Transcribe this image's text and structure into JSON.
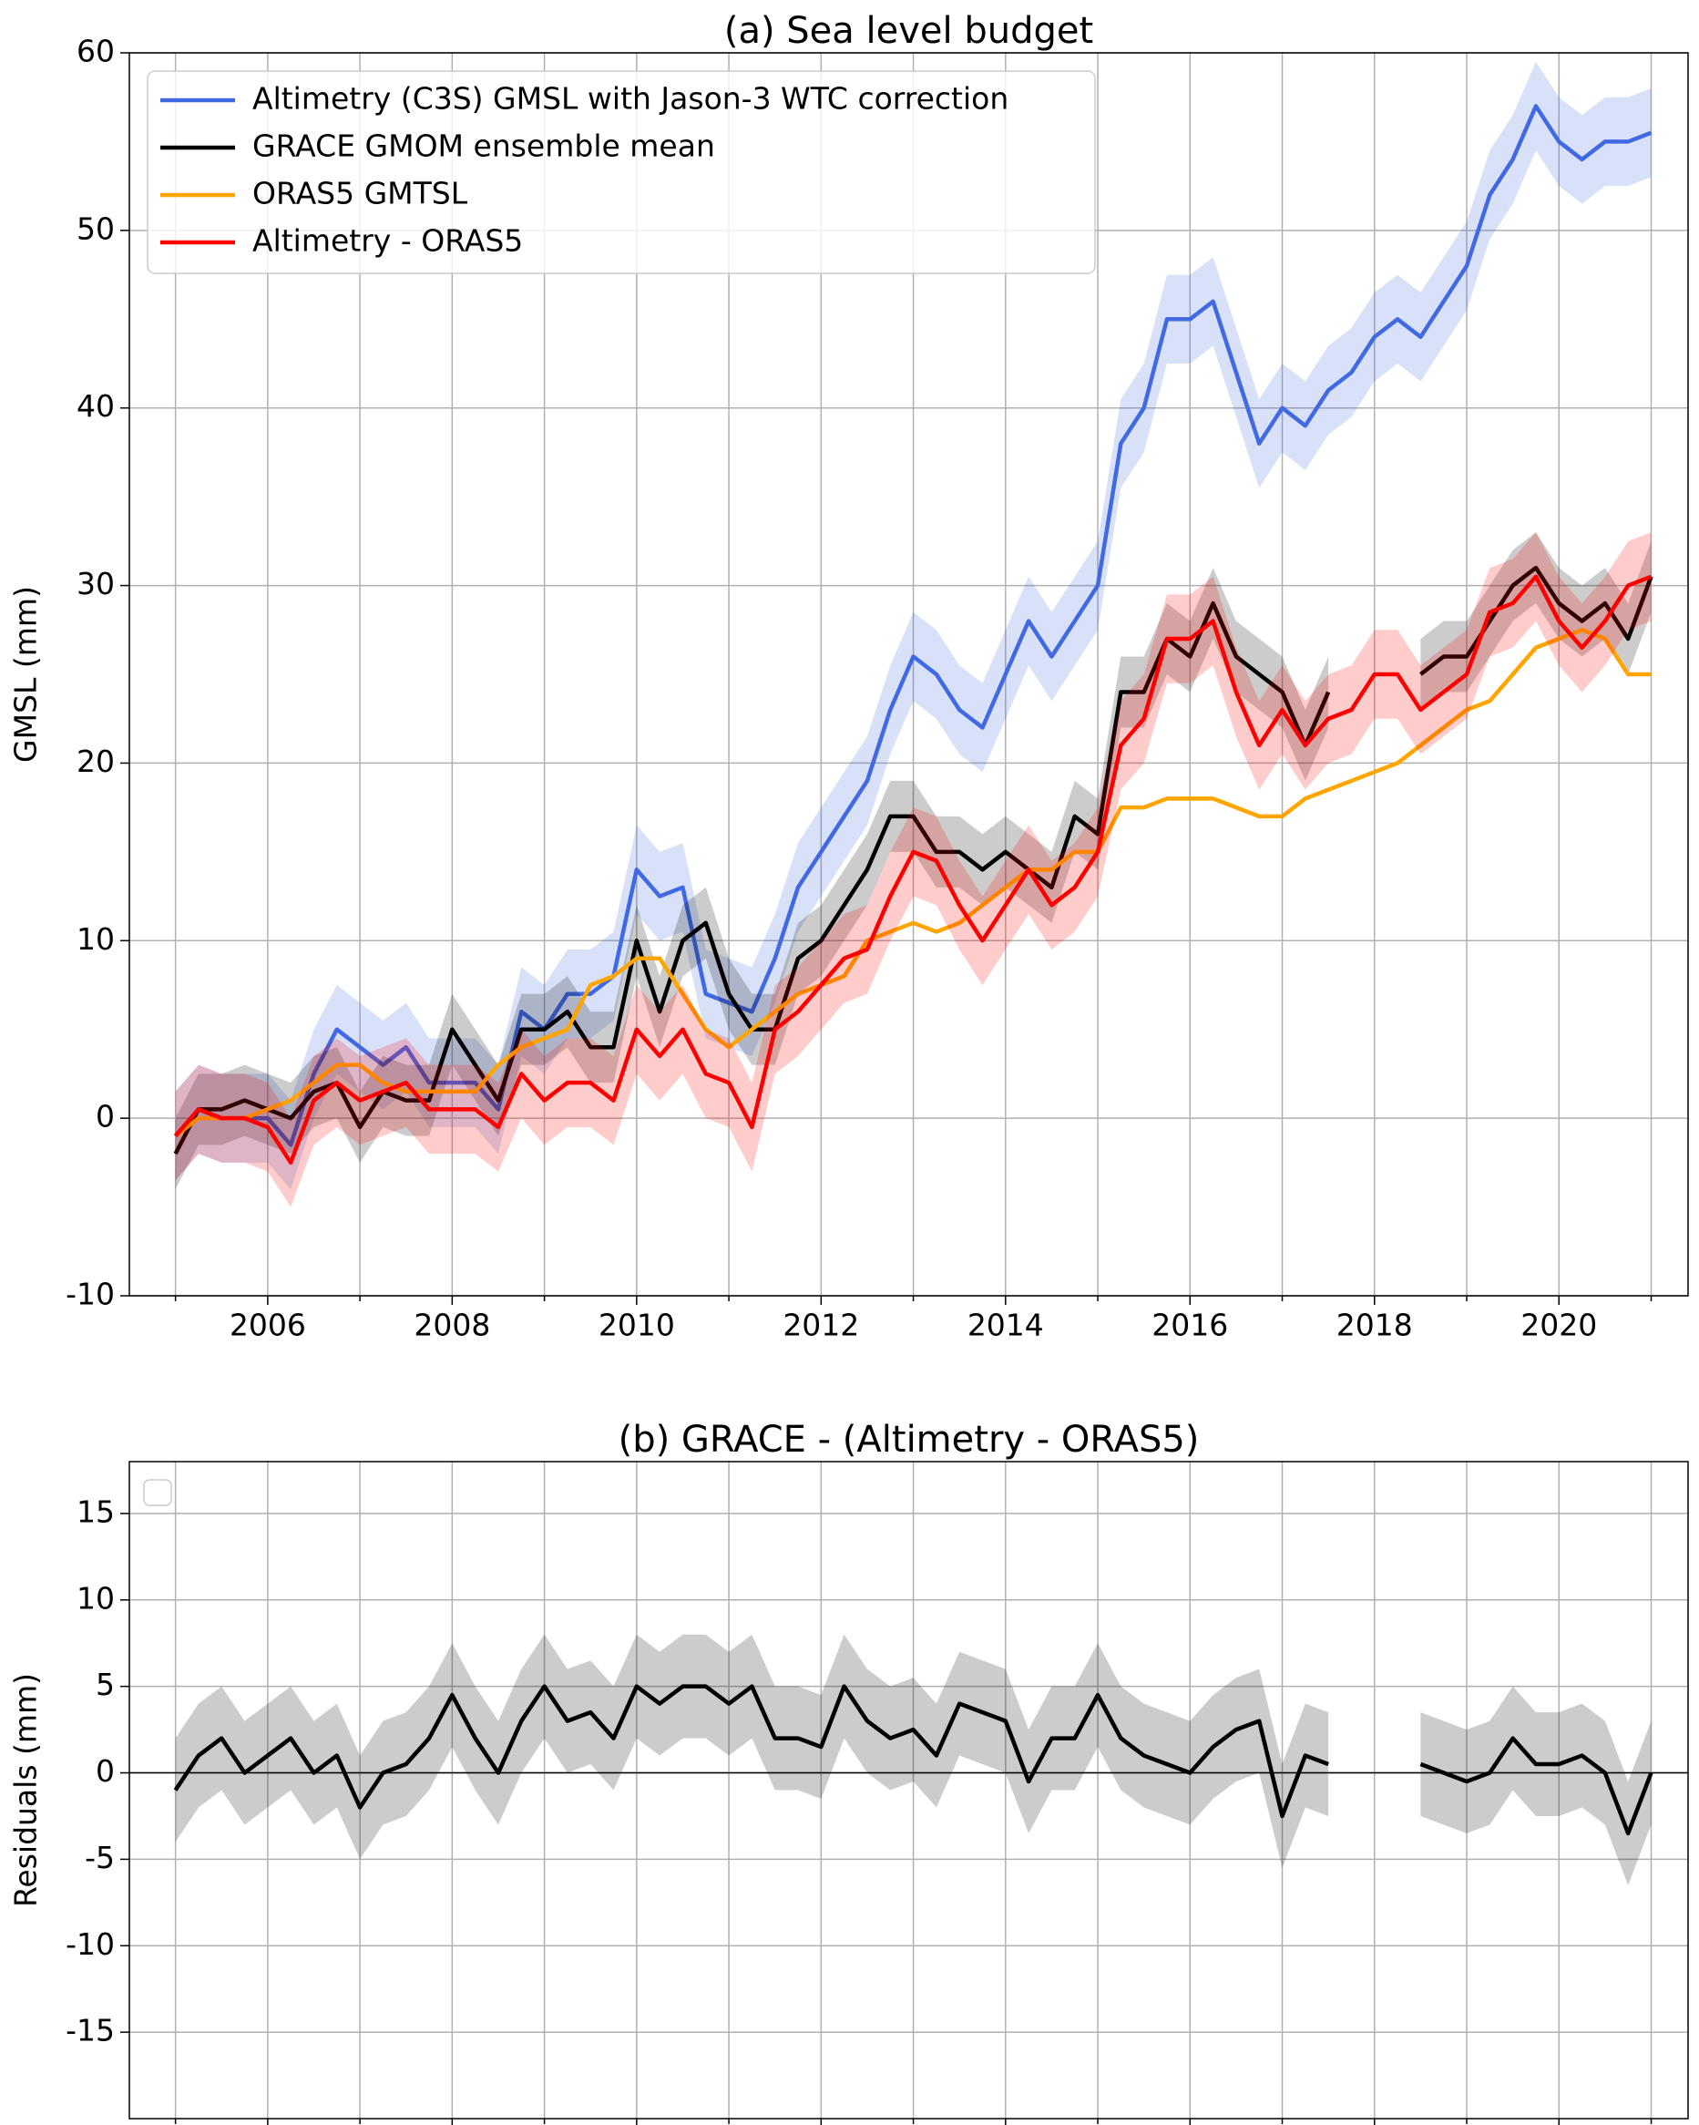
{
  "chart_data": [
    {
      "type": "line",
      "title": "(a) Sea level budget",
      "ylabel": "GMSL (mm)",
      "x": [
        2005,
        2005.25,
        2005.5,
        2005.75,
        2006,
        2006.25,
        2006.5,
        2006.75,
        2007,
        2007.25,
        2007.5,
        2007.75,
        2008,
        2008.25,
        2008.5,
        2008.75,
        2009,
        2009.25,
        2009.5,
        2009.75,
        2010,
        2010.25,
        2010.5,
        2010.75,
        2011,
        2011.25,
        2011.5,
        2011.75,
        2012,
        2012.25,
        2012.5,
        2012.75,
        2013,
        2013.25,
        2013.5,
        2013.75,
        2014,
        2014.25,
        2014.5,
        2014.75,
        2015,
        2015.25,
        2015.5,
        2015.75,
        2016,
        2016.25,
        2016.5,
        2016.75,
        2017,
        2017.25,
        2017.5,
        2017.75,
        2018,
        2018.25,
        2018.5,
        2018.75,
        2019,
        2019.25,
        2019.5,
        2019.75,
        2020,
        2020.25,
        2020.5,
        2020.75,
        2021
      ],
      "series": [
        {
          "name": "Altimetry (C3S) GMSL with Jason-3 WTC correction",
          "color": "#4169e1",
          "uncertainty": 2.5,
          "values": [
            -1,
            0.5,
            0,
            0,
            0,
            -1.5,
            2.5,
            5,
            4,
            3,
            4,
            2,
            2,
            2,
            0.5,
            6,
            5,
            7,
            7,
            8,
            14,
            12.5,
            13,
            7,
            6.5,
            6,
            9,
            13,
            15,
            17,
            19,
            23,
            26,
            25,
            23,
            22,
            25,
            28,
            26,
            28,
            30,
            38,
            40,
            45,
            45,
            46,
            42,
            38,
            40,
            39,
            41,
            42,
            44,
            45,
            44,
            46,
            48,
            52,
            54,
            57,
            55,
            54,
            55,
            55,
            55.5
          ]
        },
        {
          "name": "GRACE GMOM ensemble mean",
          "color": "#000000",
          "uncertainty": 2,
          "values": [
            -2,
            0.5,
            0.5,
            1,
            0.5,
            0,
            1.5,
            2,
            -0.5,
            1.5,
            1,
            1,
            5,
            3,
            1,
            5,
            5,
            6,
            4,
            4,
            10,
            6,
            10,
            11,
            7,
            5,
            5,
            9,
            10,
            12,
            14,
            17,
            17,
            15,
            15,
            14,
            15,
            14,
            13,
            17,
            16,
            24,
            24,
            27,
            26,
            29,
            26,
            25,
            24,
            21,
            24,
            null,
            null,
            null,
            25,
            26,
            26,
            28,
            30,
            31,
            29,
            28,
            29,
            27,
            30.5
          ]
        },
        {
          "name": "ORAS5 GMTSL",
          "color": "#ffa500",
          "values": [
            -1,
            0,
            0,
            0,
            0.5,
            1,
            2,
            3,
            3,
            2,
            1.5,
            1.5,
            1.5,
            1.5,
            3,
            4,
            4.5,
            5,
            7.5,
            8,
            9,
            9,
            7,
            5,
            4,
            5,
            6,
            7,
            7.5,
            8,
            10,
            10.5,
            11,
            10.5,
            11,
            12,
            13,
            14,
            14,
            15,
            15,
            17.5,
            17.5,
            18,
            18,
            18,
            17.5,
            17,
            17,
            18,
            18.5,
            19,
            19.5,
            20,
            21,
            22,
            23,
            23.5,
            25,
            26.5,
            27,
            27.5,
            27,
            25,
            25
          ]
        },
        {
          "name": "Altimetry - ORAS5",
          "color": "#ff0000",
          "uncertainty": 2.5,
          "values": [
            -1,
            0.5,
            0,
            0,
            -0.5,
            -2.5,
            1,
            2,
            1,
            1.5,
            2,
            0.5,
            0.5,
            0.5,
            -0.5,
            2.5,
            1,
            2,
            2,
            1,
            5,
            3.5,
            5,
            2.5,
            2,
            -0.5,
            5,
            6,
            7.5,
            9,
            9.5,
            12.5,
            15,
            14.5,
            12,
            10,
            12,
            14,
            12,
            13,
            15,
            21,
            22.5,
            27,
            27,
            28,
            24,
            21,
            23,
            21,
            22.5,
            23,
            25,
            25,
            23,
            24,
            25,
            28.5,
            29,
            30.5,
            28,
            26.5,
            28,
            30,
            30.5
          ]
        }
      ],
      "xlim": [
        2004.5,
        2021.4
      ],
      "xticks": [
        2006,
        2008,
        2010,
        2012,
        2014,
        2016,
        2018,
        2020
      ],
      "xminorticks": [
        2005,
        2007,
        2009,
        2011,
        2013,
        2015,
        2017,
        2019,
        2021
      ],
      "ylim": [
        -10,
        60
      ],
      "yticks": [
        -10,
        0,
        10,
        20,
        30,
        40,
        50,
        60
      ],
      "grid": true,
      "legend": "upper left"
    },
    {
      "type": "line",
      "title": "(b) GRACE - (Altimetry - ORAS5)",
      "ylabel": "Residuals (mm)",
      "x": [
        2005,
        2005.25,
        2005.5,
        2005.75,
        2006,
        2006.25,
        2006.5,
        2006.75,
        2007,
        2007.25,
        2007.5,
        2007.75,
        2008,
        2008.25,
        2008.5,
        2008.75,
        2009,
        2009.25,
        2009.5,
        2009.75,
        2010,
        2010.25,
        2010.5,
        2010.75,
        2011,
        2011.25,
        2011.5,
        2011.75,
        2012,
        2012.25,
        2012.5,
        2012.75,
        2013,
        2013.25,
        2013.5,
        2013.75,
        2014,
        2014.25,
        2014.5,
        2014.75,
        2015,
        2015.25,
        2015.5,
        2015.75,
        2016,
        2016.25,
        2016.5,
        2016.75,
        2017,
        2017.25,
        2017.5,
        2017.75,
        2018,
        2018.25,
        2018.5,
        2018.75,
        2019,
        2019.25,
        2019.5,
        2019.75,
        2020,
        2020.25,
        2020.5,
        2020.75,
        2021
      ],
      "series": [
        {
          "color": "#000000",
          "uncertainty": 3,
          "values": [
            -1,
            1,
            2,
            0,
            1,
            2,
            0,
            1,
            -2,
            0,
            0.5,
            2,
            4.5,
            2,
            0,
            3,
            5,
            3,
            3.5,
            2,
            5,
            4,
            5,
            5,
            4,
            5,
            2,
            2,
            1.5,
            5,
            3,
            2,
            2.5,
            1,
            4,
            3.5,
            3,
            -0.5,
            2,
            2,
            4.5,
            2,
            1,
            0.5,
            0,
            1.5,
            2.5,
            3,
            -2.5,
            1,
            0.5,
            null,
            null,
            null,
            0.5,
            0,
            -0.5,
            0,
            2,
            0.5,
            0.5,
            1,
            0,
            -3.5,
            0
          ]
        }
      ],
      "hline": 0,
      "xlim": [
        2004.5,
        2021.4
      ],
      "xticks": [
        2006,
        2008,
        2010,
        2012,
        2014,
        2016,
        2018,
        2020
      ],
      "xminorticks": [
        2005,
        2007,
        2009,
        2011,
        2013,
        2015,
        2017,
        2019,
        2021
      ],
      "ylim": [
        -20,
        18
      ],
      "yticks": [
        -15,
        -10,
        -5,
        0,
        5,
        10,
        15
      ],
      "grid": true,
      "legend": "upper left"
    }
  ]
}
